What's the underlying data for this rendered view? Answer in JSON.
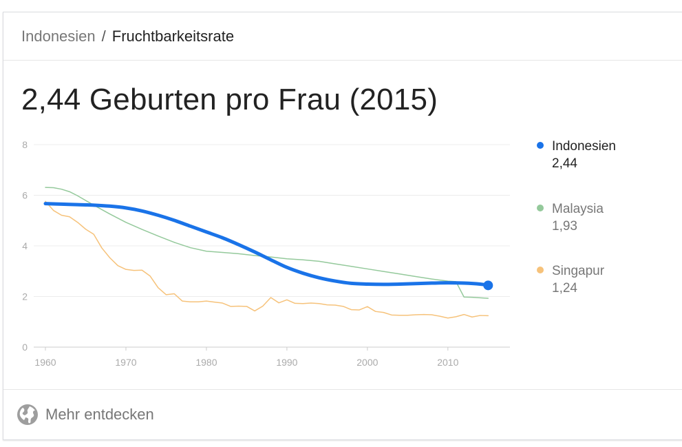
{
  "breadcrumb": {
    "country": "Indonesien",
    "separator": "/",
    "topic": "Fruchtbarkeitsrate"
  },
  "headline": "2,44 Geburten pro Frau (2015)",
  "footer": {
    "label": "Mehr entdecken",
    "icon": "globe-icon"
  },
  "colors": {
    "Indonesien": "#1a73e8",
    "Malaysia": "#94c99b",
    "Singapur": "#f6c27a",
    "grid": "#ececec",
    "axis": "#cccccc",
    "tick": "#aaaaaa"
  },
  "chart_data": {
    "type": "line",
    "x_ticks": [
      1960,
      1970,
      1980,
      1990,
      2000,
      2010
    ],
    "y_ticks": [
      0,
      2,
      4,
      6,
      8
    ],
    "xlim": [
      1960,
      2016
    ],
    "ylim": [
      0,
      8
    ],
    "grid": true,
    "legend_position": "right",
    "series": [
      {
        "name": "Indonesien",
        "latest": "2,44",
        "x": [
          1960,
          1962,
          1964,
          1966,
          1968,
          1970,
          1972,
          1974,
          1976,
          1978,
          1980,
          1982,
          1984,
          1986,
          1988,
          1990,
          1992,
          1994,
          1996,
          1998,
          2000,
          2002,
          2004,
          2006,
          2008,
          2010,
          2012,
          2014,
          2015
        ],
        "values": [
          5.67,
          5.65,
          5.63,
          5.61,
          5.57,
          5.5,
          5.38,
          5.21,
          5.01,
          4.78,
          4.55,
          4.32,
          4.05,
          3.76,
          3.45,
          3.15,
          2.92,
          2.74,
          2.61,
          2.52,
          2.49,
          2.48,
          2.49,
          2.51,
          2.53,
          2.54,
          2.53,
          2.49,
          2.44
        ]
      },
      {
        "name": "Malaysia",
        "latest": "1,93",
        "x": [
          1960,
          1961,
          1962,
          1963,
          1964,
          1966,
          1968,
          1970,
          1972,
          1974,
          1976,
          1978,
          1980,
          1982,
          1984,
          1986,
          1988,
          1990,
          1992,
          1994,
          1996,
          1998,
          2000,
          2002,
          2004,
          2006,
          2008,
          2010,
          2011,
          2012,
          2013,
          2014,
          2015
        ],
        "values": [
          6.31,
          6.3,
          6.24,
          6.14,
          5.98,
          5.61,
          5.26,
          4.93,
          4.65,
          4.39,
          4.14,
          3.93,
          3.79,
          3.74,
          3.69,
          3.62,
          3.56,
          3.49,
          3.45,
          3.39,
          3.29,
          3.19,
          3.09,
          2.99,
          2.89,
          2.79,
          2.69,
          2.61,
          2.59,
          1.98,
          1.97,
          1.95,
          1.93
        ]
      },
      {
        "name": "Singapur",
        "latest": "1,24",
        "x": [
          1960,
          1961,
          1962,
          1963,
          1964,
          1965,
          1966,
          1967,
          1968,
          1969,
          1970,
          1971,
          1972,
          1973,
          1974,
          1975,
          1976,
          1977,
          1978,
          1979,
          1980,
          1981,
          1982,
          1983,
          1984,
          1985,
          1986,
          1987,
          1988,
          1989,
          1990,
          1991,
          1992,
          1993,
          1994,
          1995,
          1996,
          1997,
          1998,
          1999,
          2000,
          2001,
          2002,
          2003,
          2004,
          2005,
          2006,
          2007,
          2008,
          2009,
          2010,
          2011,
          2012,
          2013,
          2014,
          2015
        ],
        "values": [
          5.76,
          5.4,
          5.21,
          5.15,
          4.93,
          4.66,
          4.46,
          3.92,
          3.53,
          3.22,
          3.07,
          3.03,
          3.04,
          2.81,
          2.35,
          2.07,
          2.11,
          1.82,
          1.79,
          1.79,
          1.82,
          1.78,
          1.74,
          1.61,
          1.62,
          1.61,
          1.43,
          1.62,
          1.96,
          1.75,
          1.87,
          1.73,
          1.72,
          1.74,
          1.72,
          1.67,
          1.66,
          1.61,
          1.48,
          1.47,
          1.6,
          1.41,
          1.37,
          1.27,
          1.26,
          1.26,
          1.28,
          1.29,
          1.28,
          1.22,
          1.15,
          1.2,
          1.29,
          1.19,
          1.25,
          1.24
        ]
      }
    ]
  }
}
